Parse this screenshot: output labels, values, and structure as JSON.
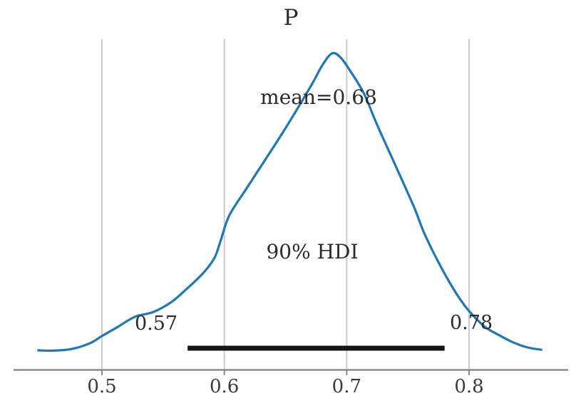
{
  "chart_data": {
    "type": "line",
    "title": "P",
    "point_estimate": {
      "label": "mean=0.68",
      "mean": 0.68
    },
    "hdi": {
      "probability": "90%",
      "label": "90% HDI",
      "lower": 0.57,
      "upper": 0.78,
      "lower_label": "0.57",
      "upper_label": "0.78"
    },
    "x_ticks": [
      0.5,
      0.6,
      0.7,
      0.8
    ],
    "x_tick_labels": [
      "0.5",
      "0.6",
      "0.7",
      "0.8"
    ],
    "xlim": [
      0.428,
      0.881
    ],
    "grid": "vertical-on",
    "legend": "none",
    "colors": {
      "curve": "#1f77b4",
      "hdi_line": "#141414",
      "grid": "#cccccc",
      "axis": "#8a8a8a",
      "text": "#2b2b2b"
    },
    "curve": {
      "x": [
        0.448,
        0.46,
        0.475,
        0.49,
        0.5,
        0.513,
        0.527,
        0.542,
        0.557,
        0.569,
        0.583,
        0.592,
        0.597,
        0.604,
        0.618,
        0.632,
        0.65,
        0.671,
        0.68,
        0.688,
        0.695,
        0.703,
        0.714,
        0.725,
        0.74,
        0.755,
        0.764,
        0.778,
        0.79,
        0.8,
        0.813,
        0.824,
        0.836,
        0.848,
        0.859
      ],
      "density": [
        0.063,
        0.062,
        0.067,
        0.085,
        0.108,
        0.137,
        0.169,
        0.184,
        0.216,
        0.256,
        0.308,
        0.355,
        0.409,
        0.488,
        0.573,
        0.656,
        0.764,
        0.899,
        0.962,
        1.0,
        0.987,
        0.944,
        0.874,
        0.773,
        0.645,
        0.515,
        0.427,
        0.319,
        0.24,
        0.187,
        0.137,
        0.112,
        0.088,
        0.072,
        0.065
      ]
    }
  }
}
